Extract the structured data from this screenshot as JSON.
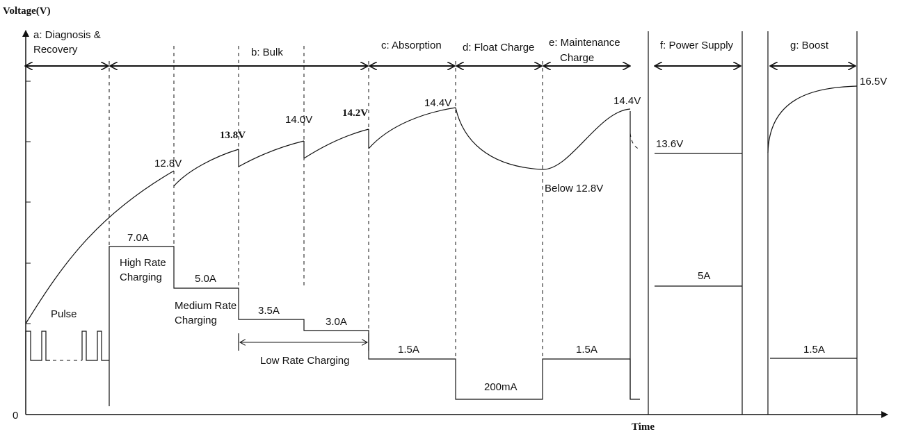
{
  "axes": {
    "y_label": "Voltage(V)",
    "x_label": "Time",
    "origin": "0"
  },
  "stages": [
    {
      "id": "a",
      "line1": "a: Diagnosis &",
      "line2": "Recovery"
    },
    {
      "id": "b",
      "line1": "b: Bulk",
      "line2": ""
    },
    {
      "id": "c",
      "line1": "c: Absorption",
      "line2": ""
    },
    {
      "id": "d",
      "line1": "d: Float Charge",
      "line2": ""
    },
    {
      "id": "e",
      "line1": "e: Maintenance",
      "line2": "Charge"
    },
    {
      "id": "f",
      "line1": "f: Power Supply",
      "line2": ""
    },
    {
      "id": "g",
      "line1": "g: Boost",
      "line2": ""
    }
  ],
  "voltages": {
    "v128": "12.8V",
    "v138": "13.8V",
    "v140": "14.0V",
    "v142": "14.2V",
    "v144a": "14.4V",
    "v144b": "14.4V",
    "below128": "Below 12.8V",
    "v136": "13.6V",
    "v165": "16.5V"
  },
  "currents": {
    "i70": "7.0A",
    "i50": "5.0A",
    "i35": "3.5A",
    "i30": "3.0A",
    "i15a": "1.5A",
    "i200": "200mA",
    "i15b": "1.5A",
    "i5": "5A",
    "i15c": "1.5A"
  },
  "annotations": {
    "pulse": "Pulse",
    "high_rate_1": "High Rate",
    "high_rate_2": "Charging",
    "medium_rate_1": "Medium Rate",
    "medium_rate_2": "Charging",
    "low_rate": "Low Rate Charging"
  }
}
